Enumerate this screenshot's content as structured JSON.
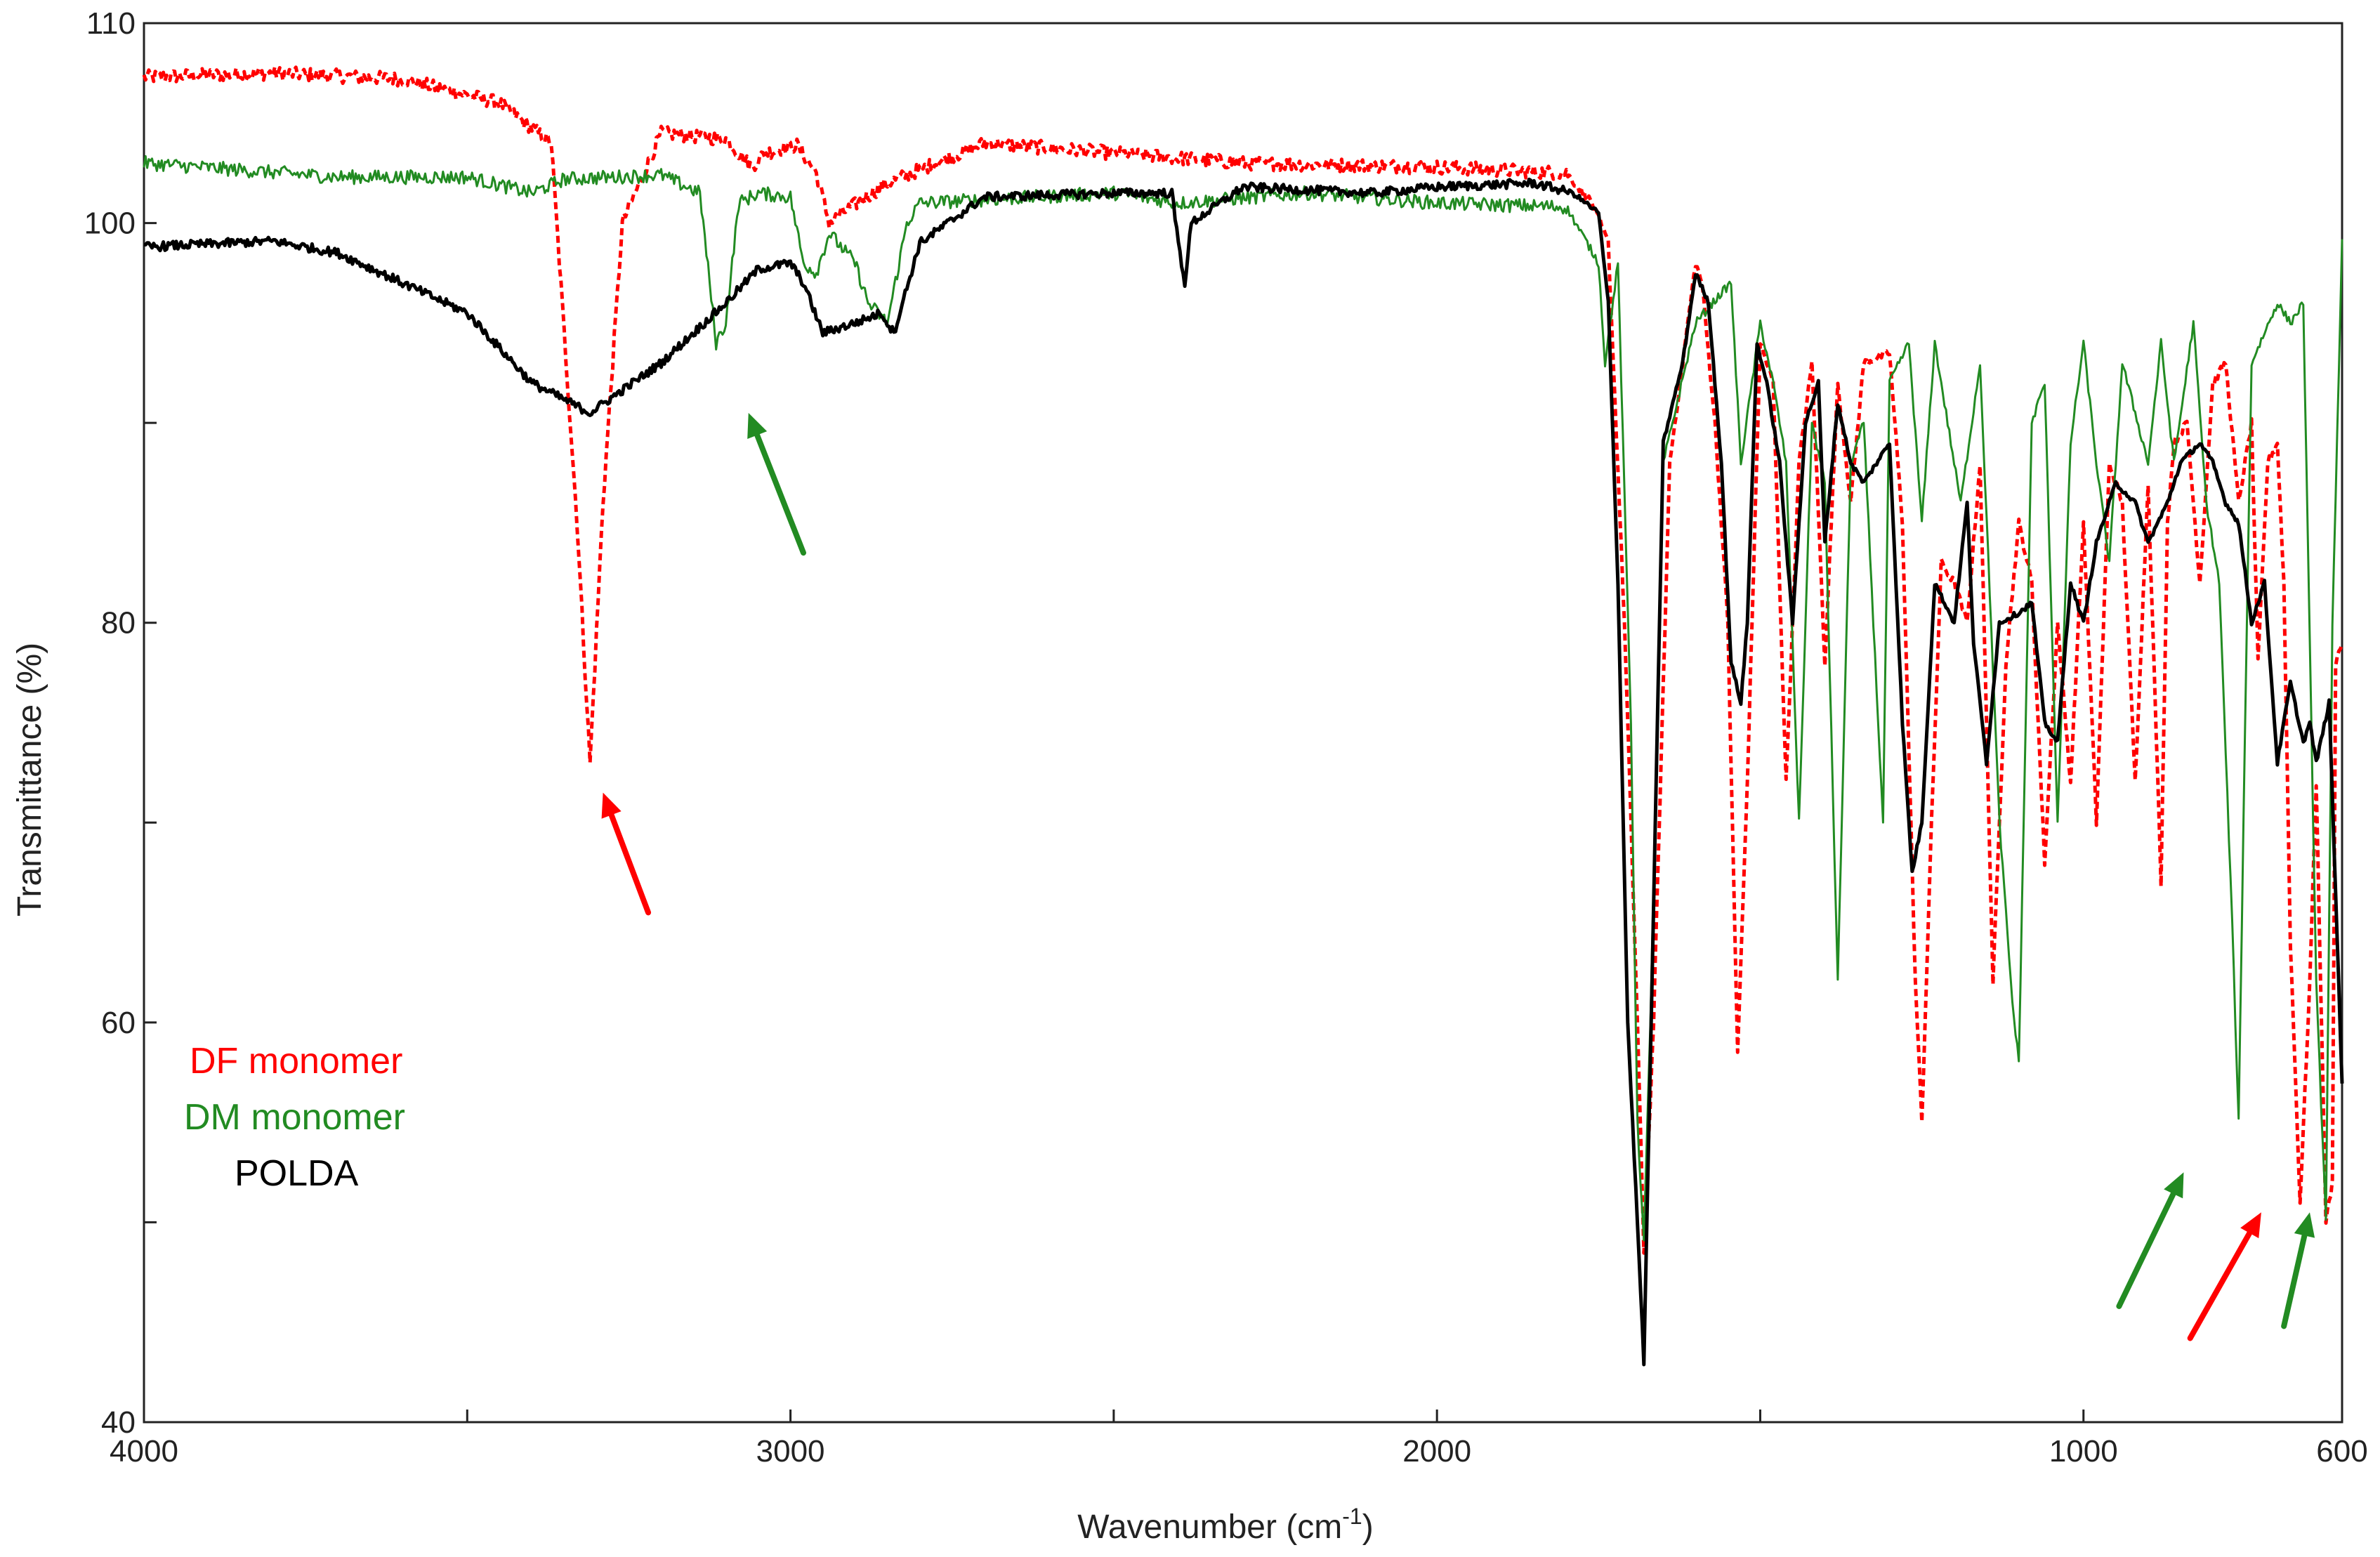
{
  "chart_data": {
    "type": "line",
    "title": "",
    "xlabel": "Wavenumber (cm",
    "xlabel_sup": "-1",
    "xlabel_suffix": ")",
    "ylabel": "Transmittance (%)",
    "xlim": [
      4000,
      600
    ],
    "x_reversed": true,
    "ylim": [
      40,
      110
    ],
    "grid": false,
    "x_ticks": [
      4000,
      3500,
      3000,
      2500,
      2000,
      1500,
      1000,
      600
    ],
    "x_tick_labels": [
      "4000",
      "",
      "3000",
      "",
      "2000",
      "",
      "1000",
      "600"
    ],
    "y_ticks": [
      40,
      50,
      60,
      70,
      80,
      90,
      100,
      110
    ],
    "y_tick_labels": [
      "40",
      "",
      "60",
      "",
      "80",
      "",
      "100",
      "110"
    ],
    "legend_position": "bottom-left",
    "series": [
      {
        "name": "DF monomer",
        "color": "#ff0000",
        "dash": true,
        "legend_prefix": "DF",
        "legend_suffix": " monomer",
        "points": [
          [
            4000,
            107.3
          ],
          [
            3800,
            107.5
          ],
          [
            3600,
            107.2
          ],
          [
            3450,
            106
          ],
          [
            3370,
            104
          ],
          [
            3330,
            85
          ],
          [
            3310,
            73
          ],
          [
            3290,
            86
          ],
          [
            3260,
            100
          ],
          [
            3200,
            104.5
          ],
          [
            3100,
            104.2
          ],
          [
            3060,
            102.8
          ],
          [
            3040,
            103.5
          ],
          [
            2990,
            103.9
          ],
          [
            2960,
            102.5
          ],
          [
            2940,
            100
          ],
          [
            2920,
            100.5
          ],
          [
            2850,
            102
          ],
          [
            2700,
            104
          ],
          [
            2500,
            103.5
          ],
          [
            2300,
            103
          ],
          [
            2000,
            102.8
          ],
          [
            1800,
            102.5
          ],
          [
            1760,
            101
          ],
          [
            1735,
            99
          ],
          [
            1710,
            80
          ],
          [
            1690,
            60
          ],
          [
            1680,
            48.5
          ],
          [
            1665,
            60
          ],
          [
            1640,
            88
          ],
          [
            1600,
            98
          ],
          [
            1590,
            97
          ],
          [
            1570,
            90
          ],
          [
            1550,
            80
          ],
          [
            1535,
            58.5
          ],
          [
            1520,
            72
          ],
          [
            1500,
            94
          ],
          [
            1480,
            92
          ],
          [
            1460,
            72
          ],
          [
            1440,
            88
          ],
          [
            1420,
            93
          ],
          [
            1400,
            78
          ],
          [
            1380,
            92
          ],
          [
            1360,
            86
          ],
          [
            1340,
            93
          ],
          [
            1300,
            93.5
          ],
          [
            1280,
            85
          ],
          [
            1260,
            62
          ],
          [
            1250,
            55
          ],
          [
            1235,
            70
          ],
          [
            1220,
            83
          ],
          [
            1200,
            82
          ],
          [
            1180,
            80
          ],
          [
            1160,
            88
          ],
          [
            1140,
            62
          ],
          [
            1120,
            78
          ],
          [
            1100,
            85
          ],
          [
            1080,
            82
          ],
          [
            1060,
            68
          ],
          [
            1040,
            80
          ],
          [
            1020,
            72
          ],
          [
            1000,
            85
          ],
          [
            980,
            70
          ],
          [
            960,
            88
          ],
          [
            940,
            86
          ],
          [
            920,
            72
          ],
          [
            900,
            87
          ],
          [
            880,
            67
          ],
          [
            870,
            85
          ],
          [
            860,
            89
          ],
          [
            840,
            90
          ],
          [
            820,
            82
          ],
          [
            800,
            92
          ],
          [
            780,
            93
          ],
          [
            760,
            86
          ],
          [
            740,
            90
          ],
          [
            730,
            78
          ],
          [
            715,
            88
          ],
          [
            700,
            89
          ],
          [
            690,
            82
          ],
          [
            680,
            64
          ],
          [
            665,
            51
          ],
          [
            650,
            62
          ],
          [
            640,
            72
          ],
          [
            625,
            50
          ],
          [
            615,
            52
          ],
          [
            610,
            78
          ],
          [
            600,
            79
          ]
        ]
      },
      {
        "name": "DM monomer",
        "color": "#228b22",
        "dash": false,
        "legend_prefix": "DM",
        "legend_suffix": " monomer",
        "points": [
          [
            4000,
            103
          ],
          [
            3700,
            102.3
          ],
          [
            3500,
            102.3
          ],
          [
            3400,
            101.5
          ],
          [
            3350,
            102.2
          ],
          [
            3200,
            102.4
          ],
          [
            3140,
            101.5
          ],
          [
            3115,
            94
          ],
          [
            3100,
            95
          ],
          [
            3080,
            101
          ],
          [
            3050,
            101.5
          ],
          [
            3000,
            101.3
          ],
          [
            2980,
            98
          ],
          [
            2960,
            97.5
          ],
          [
            2940,
            99.5
          ],
          [
            2900,
            98
          ],
          [
            2880,
            96
          ],
          [
            2850,
            95
          ],
          [
            2820,
            100
          ],
          [
            2800,
            101
          ],
          [
            2500,
            101.5
          ],
          [
            2400,
            101
          ],
          [
            2200,
            101.5
          ],
          [
            2000,
            101
          ],
          [
            1800,
            100.8
          ],
          [
            1750,
            98
          ],
          [
            1740,
            93
          ],
          [
            1720,
            98
          ],
          [
            1700,
            75
          ],
          [
            1690,
            55
          ],
          [
            1680,
            49
          ],
          [
            1670,
            60
          ],
          [
            1650,
            88
          ],
          [
            1600,
            95
          ],
          [
            1560,
            96.5
          ],
          [
            1545,
            97
          ],
          [
            1530,
            88
          ],
          [
            1500,
            95
          ],
          [
            1480,
            92
          ],
          [
            1460,
            88
          ],
          [
            1440,
            70
          ],
          [
            1420,
            90
          ],
          [
            1400,
            87
          ],
          [
            1380,
            62
          ],
          [
            1360,
            88
          ],
          [
            1340,
            90
          ],
          [
            1310,
            70
          ],
          [
            1300,
            92
          ],
          [
            1270,
            94
          ],
          [
            1250,
            85
          ],
          [
            1230,
            94
          ],
          [
            1210,
            90
          ],
          [
            1190,
            86
          ],
          [
            1160,
            93
          ],
          [
            1130,
            70
          ],
          [
            1110,
            61
          ],
          [
            1100,
            58
          ],
          [
            1080,
            90
          ],
          [
            1060,
            92
          ],
          [
            1040,
            70
          ],
          [
            1020,
            89
          ],
          [
            1000,
            94
          ],
          [
            980,
            88
          ],
          [
            960,
            83
          ],
          [
            940,
            93
          ],
          [
            900,
            88
          ],
          [
            880,
            94
          ],
          [
            860,
            88
          ],
          [
            830,
            95
          ],
          [
            810,
            86
          ],
          [
            790,
            82
          ],
          [
            770,
            65
          ],
          [
            760,
            55
          ],
          [
            750,
            75
          ],
          [
            740,
            93
          ],
          [
            700,
            96
          ],
          [
            680,
            95
          ],
          [
            660,
            96
          ],
          [
            640,
            62
          ],
          [
            625,
            50
          ],
          [
            615,
            80
          ],
          [
            600,
            99
          ]
        ]
      },
      {
        "name": "POLDA",
        "color": "#000000",
        "dash": false,
        "legend_prefix": "POLDA",
        "legend_suffix": "",
        "points": [
          [
            4000,
            98.8
          ],
          [
            3800,
            99.1
          ],
          [
            3700,
            98.5
          ],
          [
            3600,
            97
          ],
          [
            3500,
            95.5
          ],
          [
            3400,
            92
          ],
          [
            3310,
            90.5
          ],
          [
            3200,
            93
          ],
          [
            3100,
            96
          ],
          [
            3050,
            97.7
          ],
          [
            3000,
            98
          ],
          [
            2980,
            97
          ],
          [
            2950,
            94.5
          ],
          [
            2900,
            95
          ],
          [
            2860,
            95.5
          ],
          [
            2840,
            94.5
          ],
          [
            2800,
            99
          ],
          [
            2700,
            101.3
          ],
          [
            2500,
            101.5
          ],
          [
            2410,
            101.5
          ],
          [
            2400,
            99
          ],
          [
            2390,
            97
          ],
          [
            2380,
            100
          ],
          [
            2300,
            101.8
          ],
          [
            2100,
            101.5
          ],
          [
            2000,
            101.8
          ],
          [
            1850,
            102
          ],
          [
            1790,
            101.5
          ],
          [
            1770,
            101
          ],
          [
            1750,
            100.5
          ],
          [
            1735,
            96
          ],
          [
            1720,
            82
          ],
          [
            1705,
            60
          ],
          [
            1690,
            50
          ],
          [
            1680,
            43
          ],
          [
            1670,
            58
          ],
          [
            1650,
            89
          ],
          [
            1620,
            93
          ],
          [
            1600,
            97.5
          ],
          [
            1580,
            96
          ],
          [
            1560,
            88
          ],
          [
            1545,
            78
          ],
          [
            1530,
            76
          ],
          [
            1520,
            80
          ],
          [
            1505,
            94
          ],
          [
            1490,
            92
          ],
          [
            1470,
            88
          ],
          [
            1450,
            80
          ],
          [
            1430,
            90
          ],
          [
            1410,
            92
          ],
          [
            1400,
            84
          ],
          [
            1380,
            91
          ],
          [
            1360,
            88
          ],
          [
            1340,
            87
          ],
          [
            1300,
            89
          ],
          [
            1280,
            75
          ],
          [
            1265,
            67.5
          ],
          [
            1250,
            70
          ],
          [
            1230,
            82
          ],
          [
            1200,
            80
          ],
          [
            1180,
            86
          ],
          [
            1170,
            79
          ],
          [
            1150,
            73
          ],
          [
            1130,
            80
          ],
          [
            1100,
            80.5
          ],
          [
            1080,
            81
          ],
          [
            1060,
            75
          ],
          [
            1040,
            74
          ],
          [
            1020,
            82
          ],
          [
            1000,
            80
          ],
          [
            980,
            84
          ],
          [
            950,
            87
          ],
          [
            920,
            86
          ],
          [
            900,
            84
          ],
          [
            870,
            86
          ],
          [
            850,
            88
          ],
          [
            820,
            89
          ],
          [
            800,
            88
          ],
          [
            780,
            86
          ],
          [
            760,
            85
          ],
          [
            740,
            80
          ],
          [
            720,
            82
          ],
          [
            700,
            73
          ],
          [
            680,
            77
          ],
          [
            660,
            74
          ],
          [
            650,
            75
          ],
          [
            640,
            73
          ],
          [
            620,
            76
          ],
          [
            600,
            57
          ]
        ]
      }
    ],
    "arrows": [
      {
        "color": "#ff0000",
        "from": [
          3220,
          65.5
        ],
        "to": [
          3290,
          71.5
        ]
      },
      {
        "color": "#228b22",
        "from": [
          2980,
          83.5
        ],
        "to": [
          3065,
          90.5
        ]
      },
      {
        "color": "#228b22",
        "from": [
          945,
          45.8
        ],
        "to": [
          845,
          52.5
        ]
      },
      {
        "color": "#ff0000",
        "from": [
          835,
          44.2
        ],
        "to": [
          725,
          50.5
        ]
      },
      {
        "color": "#228b22",
        "from": [
          690,
          44.8
        ],
        "to": [
          650,
          50.5
        ]
      }
    ]
  }
}
